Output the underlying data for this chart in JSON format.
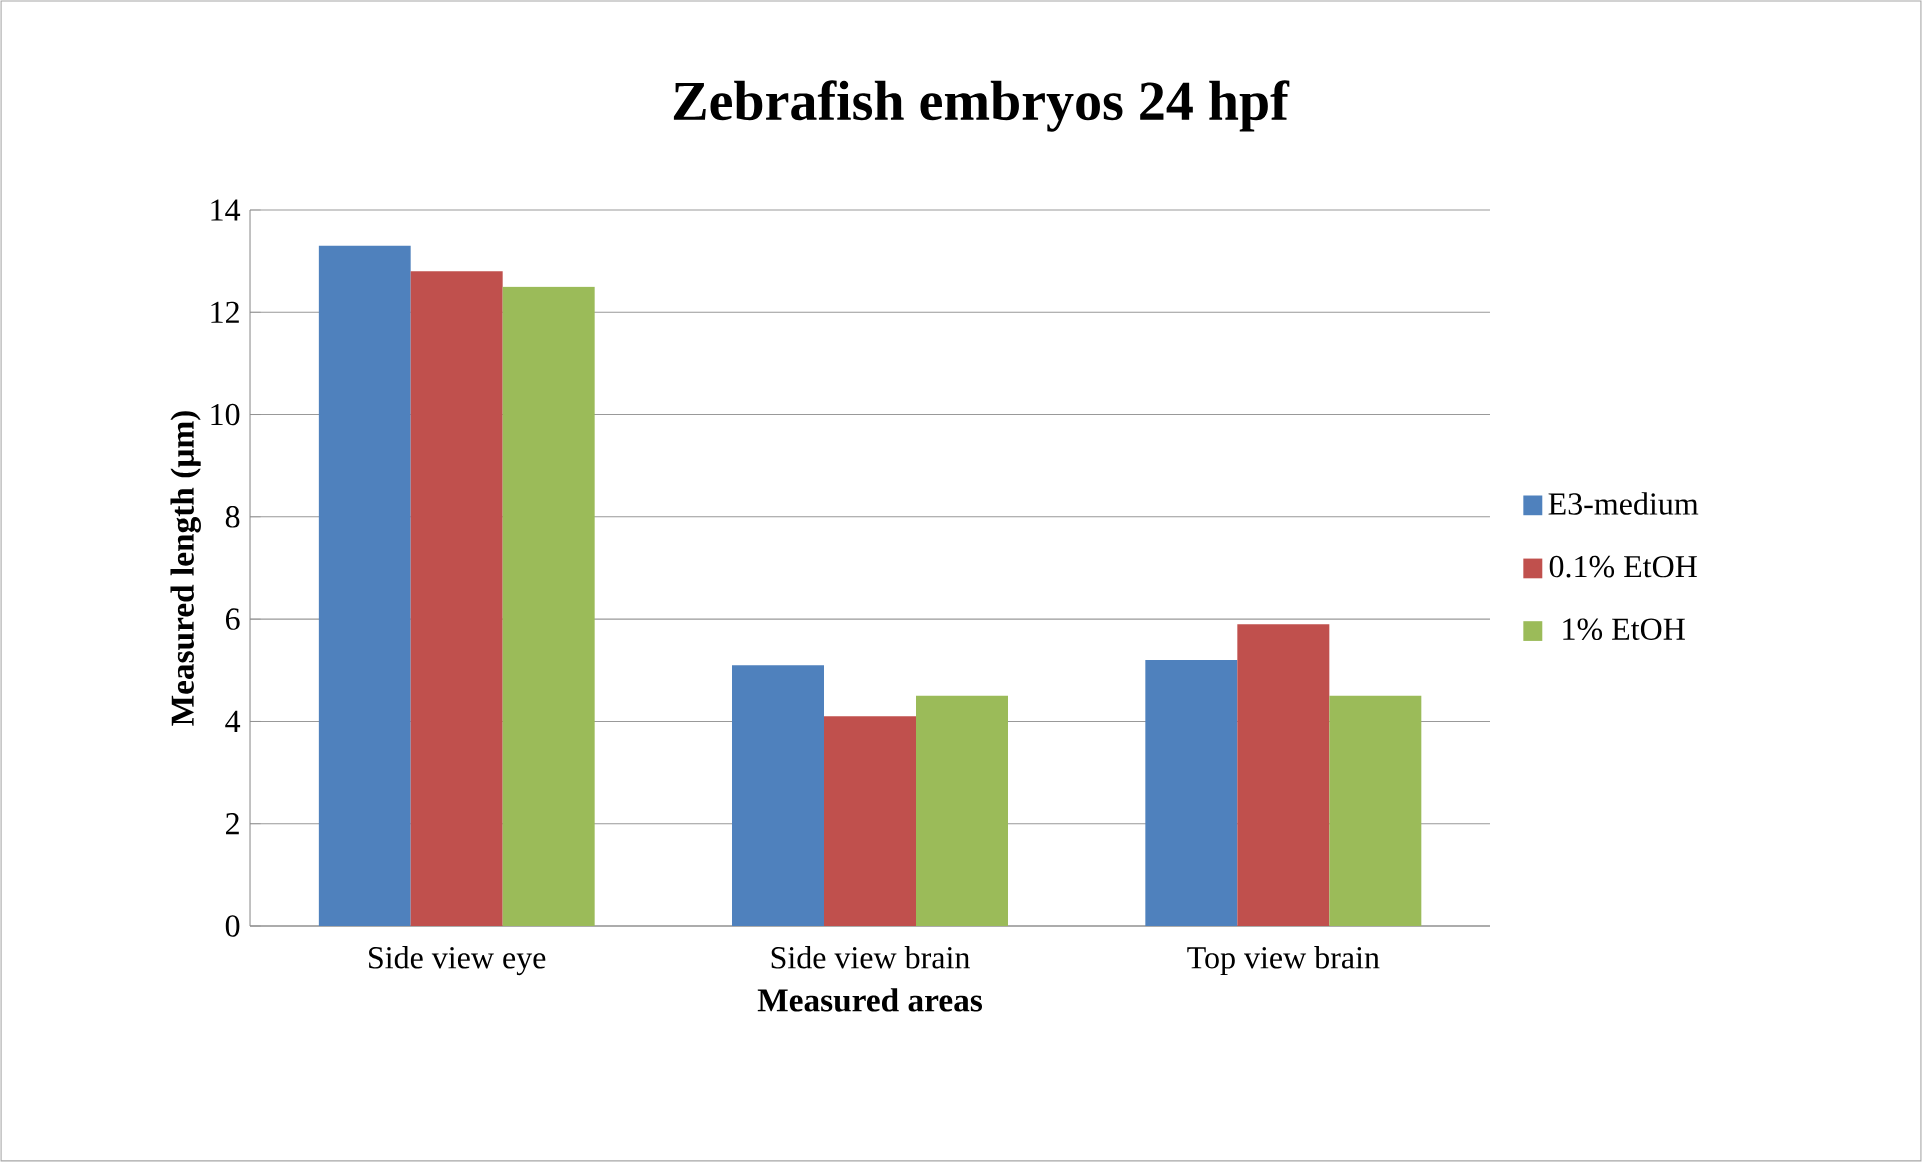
{
  "chart_data": {
    "type": "bar",
    "title": "Zebrafish embryos 24 hpf",
    "xlabel": "Measured areas",
    "ylabel": "Measured length (µm)",
    "categories": [
      "Side view eye",
      "Side view brain",
      "Top view brain"
    ],
    "series": [
      {
        "name": "E3-medium",
        "color": "#4f81bd",
        "values": [
          13.3,
          5.1,
          5.2
        ]
      },
      {
        "name": "0.1% EtOH",
        "color": "#c0504d",
        "values": [
          12.8,
          4.1,
          5.9
        ]
      },
      {
        "name": "1% EtOH",
        "color": "#9bbb59",
        "values": [
          12.5,
          4.5,
          4.5
        ]
      }
    ],
    "ylim": [
      0,
      14
    ],
    "yticks": [
      0,
      2,
      4,
      6,
      8,
      10,
      12,
      14
    ],
    "grid": "y",
    "legend": "right"
  }
}
